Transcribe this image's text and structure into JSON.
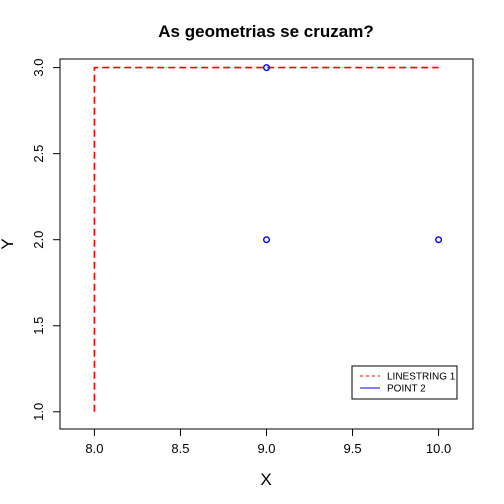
{
  "chart_data": {
    "type": "scatter",
    "title": "As geometrias se cruzam?",
    "xlabel": "X",
    "ylabel": "Y",
    "xlim": [
      7.8,
      10.2
    ],
    "ylim": [
      0.9,
      3.05
    ],
    "xticks": [
      "8.0",
      "8.5",
      "9.0",
      "9.5",
      "10.0"
    ],
    "yticks": [
      "1.0",
      "1.5",
      "2.0",
      "2.5",
      "3.0"
    ],
    "grid": false,
    "legend_position": "bottom-right",
    "series": [
      {
        "name": "LINESTRING 1",
        "kind": "line",
        "style": "dashed",
        "color": "#ff0000",
        "points": [
          [
            8,
            1
          ],
          [
            8,
            3
          ],
          [
            10,
            3
          ]
        ]
      },
      {
        "name": "POINT 2",
        "kind": "point",
        "color": "#0000ff",
        "points": [
          [
            9,
            3
          ],
          [
            9,
            2
          ],
          [
            10,
            2
          ]
        ]
      }
    ]
  }
}
